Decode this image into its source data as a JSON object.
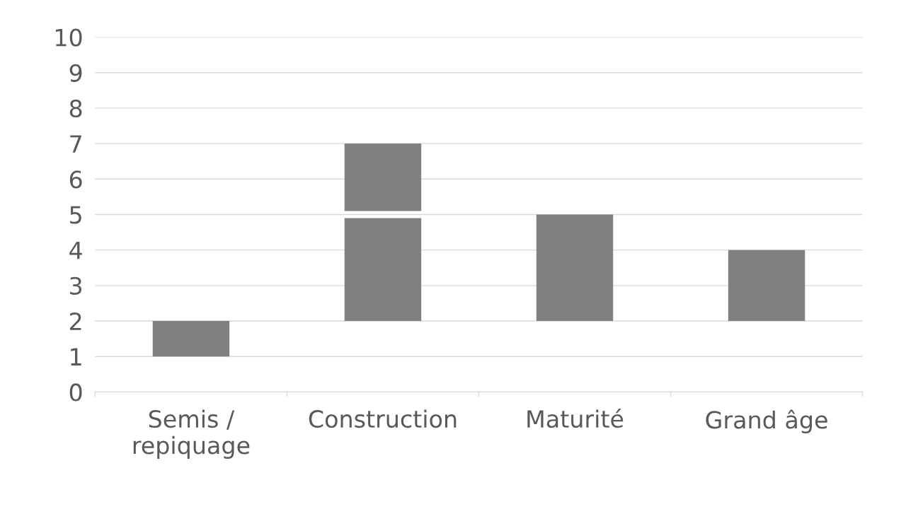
{
  "chart_data": {
    "type": "bar",
    "categories": [
      "Semis /\nrepiquage",
      "Construction",
      "Maturité",
      "Grand âge"
    ],
    "series": [
      {
        "color": "#808080",
        "base": [
          1,
          2,
          2,
          2
        ],
        "values": [
          1,
          2.9,
          3,
          2
        ]
      },
      {
        "color": "#808080",
        "base": [
          null,
          5.1,
          null,
          null
        ],
        "values": [
          null,
          1.9,
          null,
          null
        ]
      }
    ],
    "ylim": [
      0,
      10
    ],
    "yticks": [
      0,
      1,
      2,
      3,
      4,
      5,
      6,
      7,
      8,
      9,
      10
    ],
    "grid": "y",
    "legend": false
  }
}
